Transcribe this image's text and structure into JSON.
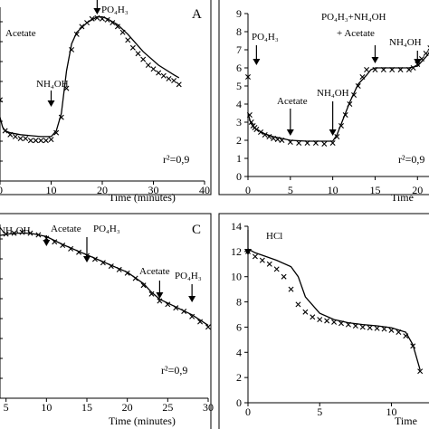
{
  "figure": {
    "panels": [
      {
        "id": "A",
        "panel_label": "A",
        "r2": "r²=0,9",
        "xlabel": "Time (minutes)",
        "annotations": [
          {
            "text": "Acetate",
            "x": 2,
            "y": 1
          },
          {
            "text": "NH₄OH",
            "x": 10,
            "y": 1
          },
          {
            "text": "PO₄H₃",
            "x": 19,
            "y": 1
          }
        ]
      },
      {
        "id": "B",
        "panel_label": "",
        "r2": "r²=0,9",
        "xlabel": "Time",
        "annotations": [
          {
            "text": "PO₄H₃",
            "x": 1,
            "y": 1
          },
          {
            "text": "Acetate",
            "x": 5,
            "y": 1
          },
          {
            "text": "NH₄OH",
            "x": 10,
            "y": 1
          },
          {
            "text": "PO₄H₃+NH₄OH",
            "x": 15,
            "y": 1
          },
          {
            "text": "+ Acetate",
            "x": 15,
            "y": 1
          },
          {
            "text": "NH₄OH",
            "x": 20,
            "y": 1
          }
        ]
      },
      {
        "id": "C",
        "panel_label": "C",
        "r2": "r²=0,9",
        "xlabel": "Time (minutes)",
        "annotations": [
          {
            "text": "NH₄OH",
            "x": 0,
            "y": 1
          },
          {
            "text": "Acetate",
            "x": 10,
            "y": 1
          },
          {
            "text": "PO₄H₃",
            "x": 15,
            "y": 1
          },
          {
            "text": "Acetate",
            "x": 24,
            "y": 1
          },
          {
            "text": "PO₄H₃",
            "x": 28,
            "y": 1
          }
        ]
      },
      {
        "id": "D",
        "panel_label": "",
        "r2": "",
        "xlabel": "Time",
        "annotations": [
          {
            "text": "HCl",
            "x": 0,
            "y": 1
          }
        ]
      }
    ]
  },
  "chart_data": [
    {
      "type": "scatter",
      "panel": "A",
      "title": "",
      "xlabel": "Time (minutes)",
      "ylabel": "",
      "xlim": [
        0,
        40
      ],
      "ylim": [
        1,
        10
      ],
      "x_ticks": [
        0,
        10,
        20,
        30,
        40
      ],
      "x_tick_labels": [
        "0",
        "10",
        "20",
        "30",
        "40"
      ],
      "series": [
        {
          "marker": "x",
          "x": [
            0,
            1,
            2,
            3,
            4,
            5,
            6,
            7,
            8,
            9,
            10,
            11,
            12,
            13,
            14,
            15,
            16,
            17,
            18,
            19,
            20,
            21,
            22,
            23,
            24,
            25,
            26,
            27,
            28,
            29,
            30,
            31,
            32,
            33,
            34,
            35
          ],
          "y": [
            5.2,
            3.6,
            3.4,
            3.3,
            3.2,
            3.2,
            3.1,
            3.1,
            3.1,
            3.1,
            3.15,
            3.5,
            4.3,
            5.8,
            7.8,
            8.6,
            9.0,
            9.2,
            9.4,
            9.45,
            9.4,
            9.35,
            9.2,
            9.0,
            8.7,
            8.3,
            7.9,
            7.6,
            7.3,
            7.0,
            6.8,
            6.6,
            6.45,
            6.3,
            6.2,
            6.0
          ]
        },
        {
          "marker": "line",
          "x": [
            0,
            0.5,
            1,
            2,
            4,
            6,
            8,
            10,
            11,
            12,
            13,
            14,
            15,
            17,
            19,
            20,
            21,
            23,
            25,
            28,
            31,
            34,
            35
          ],
          "y": [
            4.3,
            3.8,
            3.6,
            3.5,
            3.4,
            3.35,
            3.3,
            3.3,
            3.6,
            4.5,
            6.7,
            8.1,
            8.7,
            9.2,
            9.5,
            9.5,
            9.4,
            9.1,
            8.6,
            7.7,
            7.0,
            6.5,
            6.35
          ]
        }
      ]
    },
    {
      "type": "scatter",
      "panel": "B",
      "title": "",
      "xlabel": "Time",
      "ylabel": "",
      "xlim": [
        0,
        22
      ],
      "ylim": [
        0,
        9
      ],
      "x_ticks": [
        0,
        5,
        10,
        15,
        20
      ],
      "x_tick_labels": [
        "0",
        "5",
        "10",
        "15",
        "20"
      ],
      "y_ticks": [
        0,
        1,
        2,
        3,
        4,
        5,
        6,
        7,
        8,
        9
      ],
      "y_tick_labels": [
        "0",
        "1",
        "2",
        "3",
        "4",
        "5",
        "6",
        "7",
        "8",
        "9"
      ],
      "series": [
        {
          "marker": "x",
          "x": [
            0,
            0.2,
            0.4,
            0.6,
            0.8,
            1,
            1.5,
            2,
            2.5,
            3,
            3.5,
            4,
            5,
            6,
            7,
            8,
            9,
            10,
            10.5,
            11,
            11.5,
            12,
            12.5,
            13,
            13.5,
            14,
            15,
            16,
            17,
            18,
            19,
            19.5,
            20,
            20.5,
            21,
            21.5
          ],
          "y": [
            5.5,
            3.4,
            3.0,
            2.8,
            2.7,
            2.6,
            2.45,
            2.3,
            2.2,
            2.1,
            2.05,
            2.0,
            1.9,
            1.85,
            1.85,
            1.85,
            1.8,
            1.85,
            2.2,
            2.8,
            3.4,
            4.0,
            4.5,
            5.0,
            5.5,
            5.9,
            5.9,
            5.9,
            5.9,
            5.9,
            5.9,
            6.0,
            6.2,
            6.5,
            6.8,
            7.1
          ]
        },
        {
          "marker": "line",
          "x": [
            0,
            0.3,
            0.7,
            1,
            2,
            3,
            4,
            5,
            7,
            10,
            10.5,
            11,
            12,
            13,
            14,
            14.5,
            15,
            17,
            19,
            20,
            21,
            21.8
          ],
          "y": [
            3.5,
            3.0,
            2.7,
            2.6,
            2.35,
            2.2,
            2.1,
            2.0,
            1.95,
            1.95,
            2.3,
            2.9,
            4.1,
            5.1,
            5.6,
            5.9,
            6.0,
            6.0,
            6.0,
            6.1,
            6.6,
            7.1
          ]
        }
      ]
    },
    {
      "type": "scatter",
      "panel": "C",
      "title": "",
      "xlabel": "Time (minutes)",
      "ylabel": "",
      "xlim": [
        0,
        30
      ],
      "ylim": [
        0,
        10
      ],
      "x_ticks": [
        5,
        10,
        15,
        20,
        25,
        30
      ],
      "x_tick_labels": [
        "5",
        "10",
        "15",
        "20",
        "25",
        "30"
      ],
      "series": [
        {
          "marker": "x",
          "x": [
            0,
            1,
            2,
            3,
            4,
            5,
            6,
            7,
            8,
            9,
            10,
            11,
            12,
            13,
            14,
            15,
            16,
            17,
            18,
            19,
            20,
            21,
            22,
            23,
            24,
            25,
            26,
            27,
            28,
            29,
            30
          ],
          "y": [
            8.6,
            8.8,
            9.0,
            9.2,
            9.35,
            9.45,
            9.5,
            9.55,
            9.5,
            9.4,
            9.2,
            9.0,
            8.8,
            8.6,
            8.4,
            8.2,
            8.0,
            7.8,
            7.6,
            7.4,
            7.2,
            6.9,
            6.5,
            6.0,
            5.6,
            5.4,
            5.2,
            5.0,
            4.7,
            4.4,
            4.1
          ]
        },
        {
          "marker": "line",
          "x": [
            0,
            2,
            4,
            6,
            8,
            10,
            12,
            14,
            16,
            18,
            20,
            22,
            23,
            24,
            26,
            28,
            30
          ],
          "y": [
            8.7,
            9.05,
            9.35,
            9.5,
            9.5,
            9.3,
            8.85,
            8.45,
            8.05,
            7.65,
            7.25,
            6.6,
            6.1,
            5.7,
            5.25,
            4.8,
            4.2
          ]
        }
      ]
    },
    {
      "type": "scatter",
      "panel": "D",
      "title": "",
      "xlabel": "Time",
      "ylabel": "",
      "xlim": [
        0,
        13
      ],
      "ylim": [
        0,
        14
      ],
      "x_ticks": [
        0,
        5,
        10
      ],
      "x_tick_labels": [
        "0",
        "5",
        "10"
      ],
      "y_ticks": [
        0,
        2,
        4,
        6,
        8,
        10,
        12,
        14
      ],
      "y_tick_labels": [
        "0",
        "2",
        "4",
        "6",
        "8",
        "10",
        "12",
        "14"
      ],
      "series": [
        {
          "marker": "x",
          "x": [
            0,
            0.5,
            1,
            1.5,
            2,
            2.5,
            3,
            3.5,
            4,
            4.5,
            5,
            5.5,
            6,
            6.5,
            7,
            7.5,
            8,
            8.5,
            9,
            9.5,
            10,
            10.5,
            11,
            11.5,
            12
          ],
          "y": [
            12.0,
            11.6,
            11.3,
            11.0,
            10.6,
            10.0,
            9.0,
            7.8,
            7.2,
            6.8,
            6.6,
            6.5,
            6.4,
            6.3,
            6.2,
            6.1,
            6.0,
            5.95,
            5.9,
            5.85,
            5.75,
            5.6,
            5.3,
            4.5,
            2.5
          ]
        },
        {
          "marker": "line",
          "x": [
            0,
            0.5,
            1,
            2,
            3,
            3.5,
            4,
            5,
            6,
            7,
            8,
            9,
            10,
            11,
            11.5,
            12
          ],
          "y": [
            12.2,
            11.9,
            11.7,
            11.3,
            10.8,
            10.0,
            8.4,
            7.1,
            6.6,
            6.35,
            6.2,
            6.1,
            5.95,
            5.6,
            4.6,
            2.6
          ]
        }
      ]
    }
  ]
}
